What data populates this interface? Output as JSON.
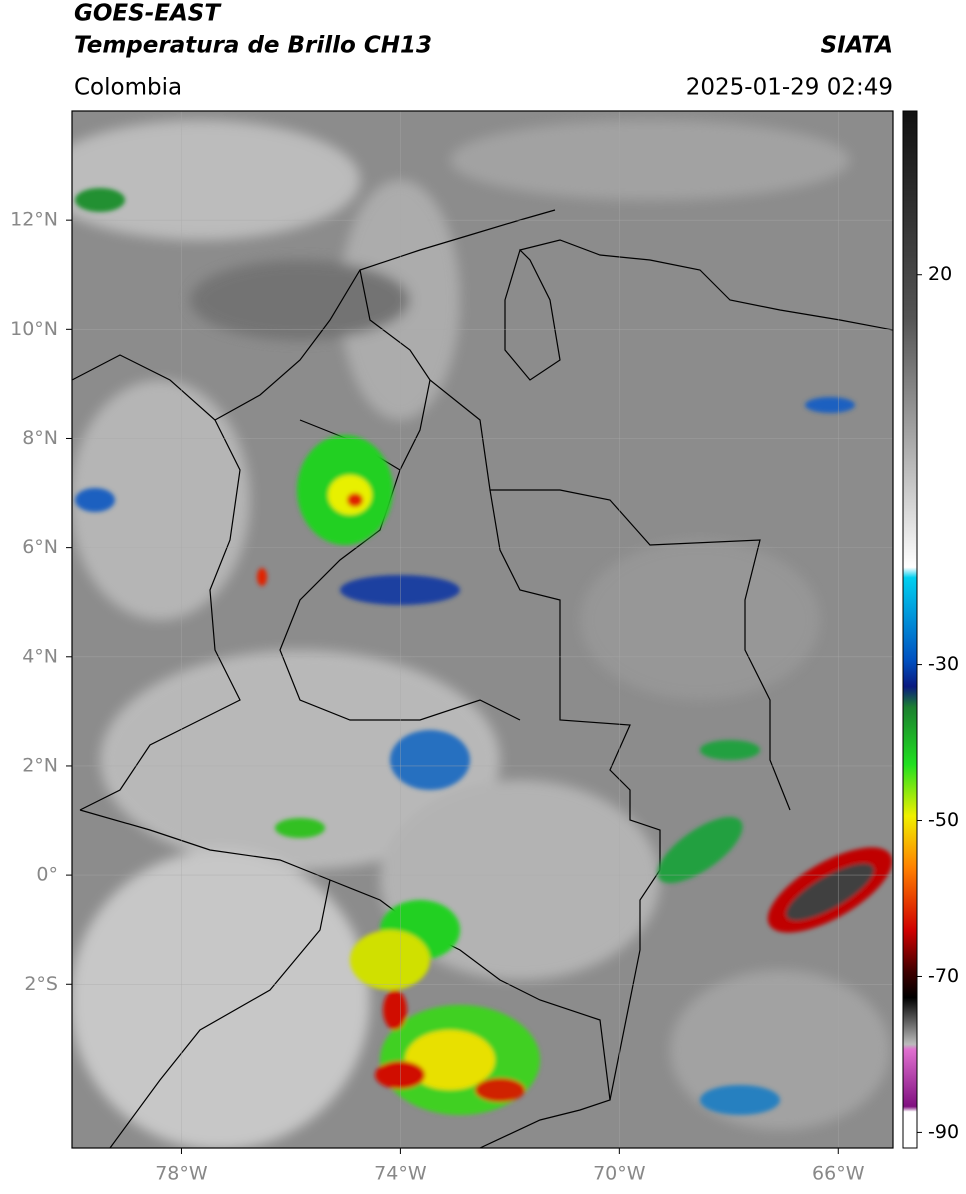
{
  "header": {
    "title_line1": "GOES-EAST",
    "title_line2": "Temperatura de Brillo CH13",
    "source": "SIATA",
    "region": "Colombia",
    "datetime": "2025-01-29 02:49"
  },
  "map": {
    "lonlim": [
      -80,
      -65
    ],
    "latlim": [
      -5,
      14
    ],
    "lonticks": [
      {
        "value": -78,
        "label": "78°W"
      },
      {
        "value": -74,
        "label": "74°W"
      },
      {
        "value": -70,
        "label": "70°W"
      },
      {
        "value": -66,
        "label": "66°W"
      }
    ],
    "latticks": [
      {
        "value": 12,
        "label": "12°N"
      },
      {
        "value": 10,
        "label": "10°N"
      },
      {
        "value": 8,
        "label": "8°N"
      },
      {
        "value": 6,
        "label": "6°N"
      },
      {
        "value": 4,
        "label": "4°N"
      },
      {
        "value": 2,
        "label": "2°N"
      },
      {
        "value": 0,
        "label": "0°"
      },
      {
        "value": -2,
        "label": "2°S"
      }
    ]
  },
  "colorbar": {
    "lim": [
      -92,
      41
    ],
    "ticks": [
      20,
      -30,
      -50,
      -70,
      -90
    ]
  }
}
